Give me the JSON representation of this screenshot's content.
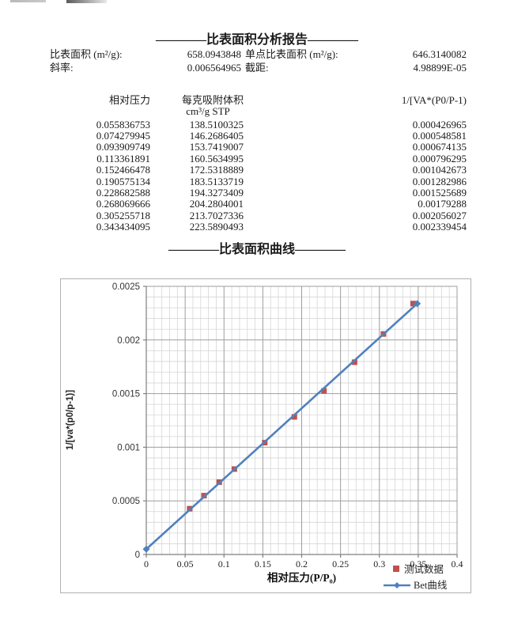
{
  "report": {
    "title": "————比表面积分析报告————",
    "summary": [
      {
        "label": "比表面积 (m²/g):",
        "value": "658.0943848",
        "label2": "单点比表面积 (m²/g):",
        "value2": "646.3140082"
      },
      {
        "label": "斜率:",
        "value": "0.006564965",
        "label2": "截距:",
        "value2": "4.98899E-05"
      }
    ]
  },
  "table": {
    "col1_header": "相对压力",
    "col2_header_line1": "每克吸附体积",
    "col2_header_line2": "cm³/g STP",
    "col3_header": "1/[VA*(P0/P-1)",
    "rows": [
      [
        "0.055836753",
        "138.5100325",
        "0.000426965"
      ],
      [
        "0.074279945",
        "146.2686405",
        "0.000548581"
      ],
      [
        "0.093909749",
        "153.7419007",
        "0.000674135"
      ],
      [
        "0.113361891",
        "160.5634995",
        "0.000796295"
      ],
      [
        "0.152466478",
        "172.5318889",
        "0.001042673"
      ],
      [
        "0.190575134",
        "183.5133719",
        "0.001282986"
      ],
      [
        "0.228682588",
        "194.3273409",
        "0.001525689"
      ],
      [
        "0.268069666",
        "204.2804001",
        "0.00179288"
      ],
      [
        "0.305255718",
        "213.7027336",
        "0.002056027"
      ],
      [
        "0.343434095",
        "223.5890493",
        "0.002339454"
      ]
    ]
  },
  "curve_section": {
    "title": "————比表面积曲线————"
  },
  "chart_data": {
    "type": "scatter",
    "title": "",
    "xlabel": "相对压力(P/P₀)",
    "ylabel": "1/[va*(p0/p-1)]",
    "xlim": [
      0,
      0.4
    ],
    "ylim": [
      0,
      0.0025
    ],
    "x_major": 0.05,
    "x_minor": 0.01,
    "y_major": 0.0005,
    "y_minor": 0.0001,
    "x_tick_labels": [
      "0",
      "0.05",
      "0.1",
      "0.15",
      "0.2",
      "0.25",
      "0.3",
      "0.35",
      "0.4"
    ],
    "y_tick_labels": [
      "0",
      "0.0005",
      "0.001",
      "0.0015",
      "0.002",
      "0.0025"
    ],
    "grid": true,
    "legend_position": "bottom-right",
    "colors": {
      "line": "#4F81BD",
      "scatter": "#C0504D",
      "grid_major": "#9e9e9e",
      "grid_minor": "#d6d6d6",
      "axis": "#7f7f7f"
    },
    "series": [
      {
        "name": "测试数据",
        "type": "scatter",
        "marker": "square",
        "color": "#C0504D",
        "x": [
          0.055836753,
          0.074279945,
          0.093909749,
          0.113361891,
          0.152466478,
          0.190575134,
          0.228682588,
          0.268069666,
          0.305255718,
          0.343434095
        ],
        "y": [
          0.000426965,
          0.000548581,
          0.000674135,
          0.000796295,
          0.001042673,
          0.001282986,
          0.001525689,
          0.00179288,
          0.002056027,
          0.002339454
        ]
      },
      {
        "name": "Bet曲线",
        "type": "line",
        "marker": "diamond",
        "color": "#4F81BD",
        "x": [
          0,
          0.3487
        ],
        "y": [
          4.98899e-05,
          0.002339
        ]
      }
    ]
  }
}
